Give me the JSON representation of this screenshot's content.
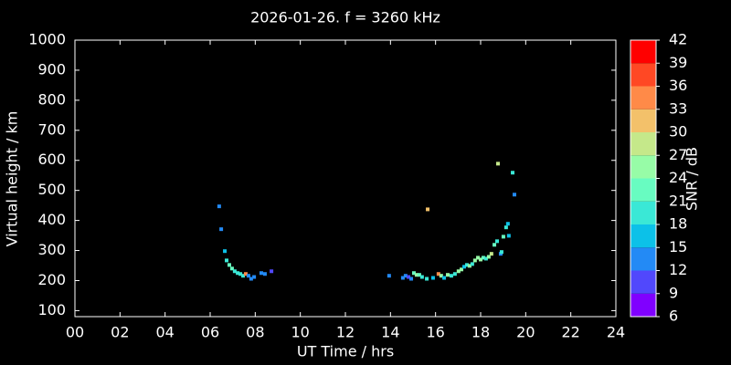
{
  "chart_data": {
    "type": "scatter",
    "title": "2026-01-26. f = 3260 kHz",
    "x_label": "UT Time / hrs",
    "y_label": "Virtual height / km",
    "xlim": [
      0,
      24
    ],
    "ylim": [
      80,
      1000
    ],
    "xticks": [
      {
        "value": 0,
        "label": "00"
      },
      {
        "value": 2,
        "label": "02"
      },
      {
        "value": 4,
        "label": "04"
      },
      {
        "value": 6,
        "label": "06"
      },
      {
        "value": 8,
        "label": "08"
      },
      10,
      12,
      14,
      16,
      18,
      20,
      22,
      24
    ],
    "yticks": [
      100,
      200,
      300,
      400,
      500,
      600,
      700,
      800,
      900,
      1000
    ],
    "x": [
      6.4,
      6.49,
      6.65,
      6.73,
      6.85,
      6.97,
      7.09,
      7.22,
      7.34,
      7.46,
      7.58,
      7.7,
      7.82,
      7.95,
      8.27,
      8.43,
      8.72,
      13.94,
      14.55,
      14.67,
      14.8,
      14.92,
      15.04,
      15.16,
      15.28,
      15.4,
      15.65,
      15.61,
      15.89,
      16.13,
      16.25,
      16.38,
      16.54,
      16.7,
      16.86,
      17.02,
      17.15,
      17.27,
      17.39,
      17.51,
      17.63,
      17.75,
      17.88,
      18.0,
      18.12,
      18.24,
      18.36,
      18.48,
      18.61,
      18.73,
      18.77,
      18.89,
      18.93,
      19.01,
      19.13,
      19.21,
      19.25,
      19.42,
      19.5
    ],
    "values": [
      447,
      371,
      298,
      267,
      252,
      240,
      231,
      225,
      222,
      216,
      222,
      216,
      206,
      212,
      225,
      222,
      231,
      216,
      209,
      216,
      212,
      206,
      225,
      219,
      219,
      212,
      437,
      206,
      209,
      222,
      216,
      209,
      219,
      216,
      222,
      231,
      237,
      246,
      252,
      249,
      255,
      267,
      276,
      270,
      276,
      273,
      279,
      289,
      319,
      331,
      589,
      289,
      295,
      346,
      377,
      389,
      349,
      559,
      486
    ],
    "snr": [
      13,
      13,
      16,
      19,
      22,
      22,
      20,
      20,
      18,
      20,
      34,
      13,
      14,
      14,
      13,
      12,
      11,
      14,
      12,
      13,
      11,
      14,
      22,
      25,
      23,
      20,
      31,
      18,
      16,
      34,
      24,
      17,
      25,
      18,
      20,
      25,
      24,
      16,
      20,
      25,
      20,
      25,
      26,
      25,
      22,
      20,
      25,
      28,
      23,
      20,
      27,
      13,
      20,
      22,
      20,
      17,
      16,
      18,
      13
    ],
    "colorbar": {
      "label": "SNR / dB",
      "ticks": [
        6,
        9,
        12,
        15,
        18,
        21,
        24,
        27,
        30,
        33,
        36,
        39,
        42
      ],
      "colors": [
        "#8000ff",
        "#5148fc",
        "#238af5",
        "#0cc1e8",
        "#3ae8d6",
        "#68fcc1",
        "#97fca7",
        "#c5e88a",
        "#f3c16a",
        "#ff8a48",
        "#ff4824",
        "#ff0000"
      ]
    }
  }
}
